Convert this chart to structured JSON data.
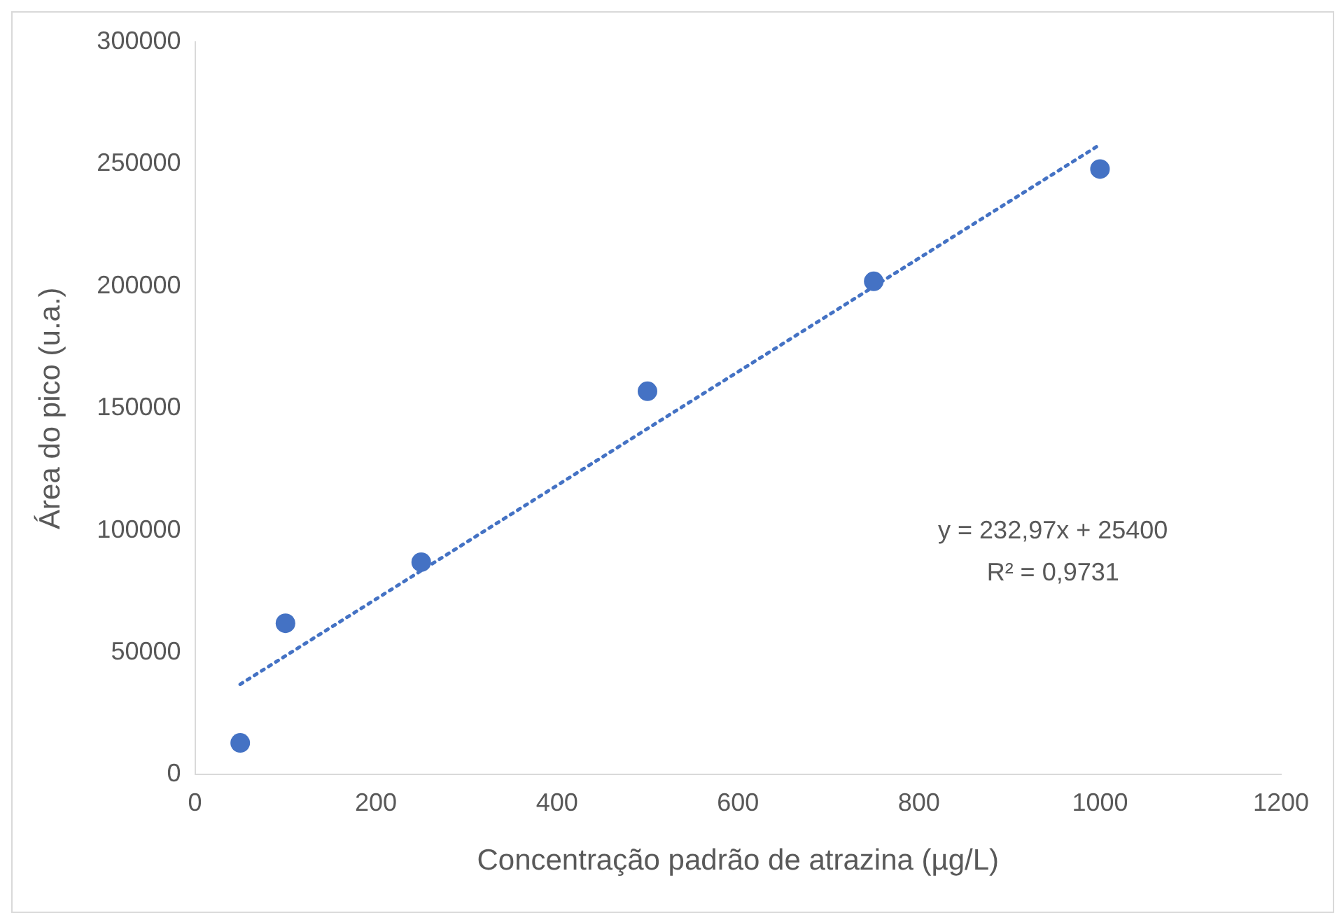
{
  "chart_data": {
    "type": "scatter",
    "xlabel": "Concentração padrão de atrazina (µg/L)",
    "ylabel": "Área do pico (u.a.)",
    "x": [
      50,
      100,
      250,
      500,
      750,
      1000
    ],
    "series": [
      {
        "type": "scatter",
        "color": "#4472c4",
        "marker": "circle",
        "values": [
          13000,
          62000,
          87000,
          157000,
          202000,
          248000
        ]
      },
      {
        "type": "line",
        "color": "#4472c4",
        "line_style": "dotted",
        "marker": "none",
        "x": [
          50,
          1000
        ],
        "values": [
          37000,
          258000
        ]
      }
    ],
    "xlim": [
      0,
      1200
    ],
    "xticks": [
      0,
      200,
      400,
      600,
      800,
      1000,
      1200
    ],
    "ylim": [
      0,
      300000
    ],
    "yticks": [
      0,
      50000,
      100000,
      150000,
      200000,
      250000,
      300000
    ],
    "grid": false,
    "legend": false,
    "annotations": [
      "y = 232,97x + 25400",
      "R² = 0,9731"
    ]
  }
}
